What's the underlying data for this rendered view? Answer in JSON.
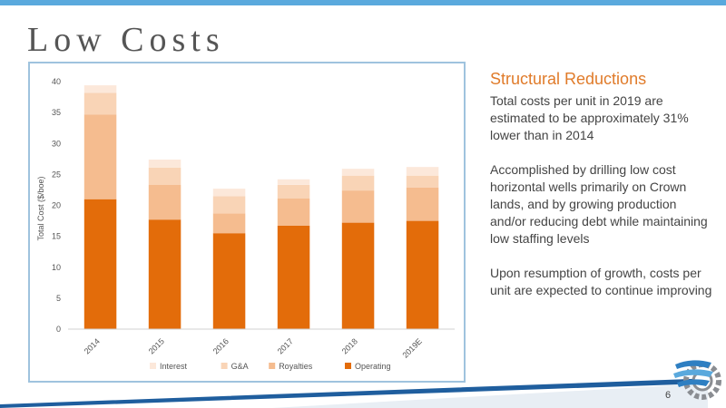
{
  "slide": {
    "title": "Low Costs",
    "page_number": "6"
  },
  "side_panel": {
    "heading": "Structural Reductions",
    "paragraphs": [
      "Total costs per unit in 2019 are estimated to be approximately 31% lower than in 2014",
      "Accomplished by drilling low cost horizontal wells primarily on Crown lands, and by growing production and/or reducing debt while maintaining low staffing levels",
      "Upon resumption of growth, costs per unit are expected to continue improving"
    ]
  },
  "colors": {
    "operating": "#e36c0a",
    "royalties": "#f5bc8f",
    "ga": "#f9d4b6",
    "interest": "#fce8da",
    "accent": "#5aa9dd"
  },
  "chart_data": {
    "type": "bar",
    "stacked": true,
    "categories": [
      "2014",
      "2015",
      "2016",
      "2017",
      "2018",
      "2019E"
    ],
    "series": [
      {
        "name": "Operating",
        "color": "#e36c0a",
        "values": [
          21.0,
          17.7,
          15.5,
          16.7,
          17.2,
          17.5
        ]
      },
      {
        "name": "Royalties",
        "color": "#f5bc8f",
        "values": [
          13.7,
          5.6,
          3.2,
          4.4,
          5.2,
          5.4
        ]
      },
      {
        "name": "G&A",
        "color": "#f9d4b6",
        "values": [
          3.5,
          2.8,
          2.8,
          2.2,
          2.4,
          1.9
        ]
      },
      {
        "name": "Interest",
        "color": "#fce8da",
        "values": [
          1.2,
          1.3,
          1.2,
          0.9,
          1.1,
          1.4
        ]
      }
    ],
    "legend_order": [
      "Interest",
      "G&A",
      "Royalties",
      "Operating"
    ],
    "ylabel": "Total Cost ($/boe)",
    "xlabel": "",
    "ylim": [
      0,
      40
    ],
    "yticks": [
      0,
      5,
      10,
      15,
      20,
      25,
      30,
      35,
      40
    ],
    "grid": false,
    "legend_position": "bottom"
  }
}
